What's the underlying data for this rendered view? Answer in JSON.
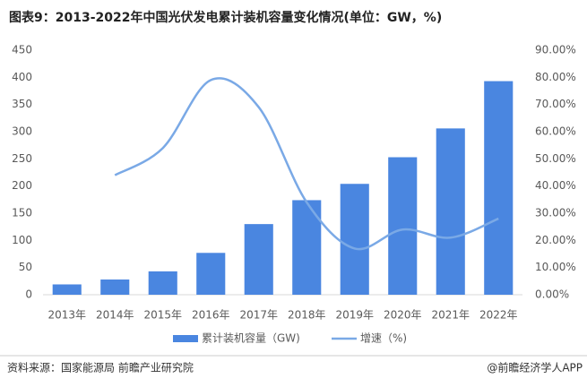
{
  "chart_data": {
    "type": "bar",
    "title": "图表9：2013-2022年中国光伏发电累计装机容量变化情况(单位：GW，%)",
    "categories": [
      "2013年",
      "2014年",
      "2015年",
      "2016年",
      "2017年",
      "2018年",
      "2019年",
      "2020年",
      "2021年",
      "2022年"
    ],
    "series": [
      {
        "name": "累计装机容量（GW)",
        "type": "bar",
        "color": "#4a86e0",
        "values": [
          19,
          28,
          43,
          77,
          130,
          174,
          204,
          253,
          306,
          393
        ]
      },
      {
        "name": "增速（%)",
        "type": "line",
        "axis": "y2",
        "color": "#7aa9e6",
        "values": [
          null,
          44,
          54,
          79,
          69,
          34,
          17,
          24,
          21,
          28
        ]
      }
    ],
    "ylim": [
      0,
      450
    ],
    "yticks": [
      0,
      50,
      100,
      150,
      200,
      250,
      300,
      350,
      400,
      450
    ],
    "y2lim": [
      0,
      90
    ],
    "y2ticks": [
      {
        "value": 0,
        "label": "0.00%"
      },
      {
        "value": 10,
        "label": "10.00%"
      },
      {
        "value": 20,
        "label": "20.00%"
      },
      {
        "value": 30,
        "label": "30.00%"
      },
      {
        "value": 40,
        "label": "40.00%"
      },
      {
        "value": 50,
        "label": "50.00%"
      },
      {
        "value": 60,
        "label": "60.00%"
      },
      {
        "value": 70,
        "label": "70.00%"
      },
      {
        "value": 80,
        "label": "80.00%"
      },
      {
        "value": 90,
        "label": "90.00%"
      }
    ],
    "legend": "bottom",
    "source": "资料来源：国家能源局 前瞻产业研究院",
    "credit": "@前瞻经济学人APP"
  }
}
